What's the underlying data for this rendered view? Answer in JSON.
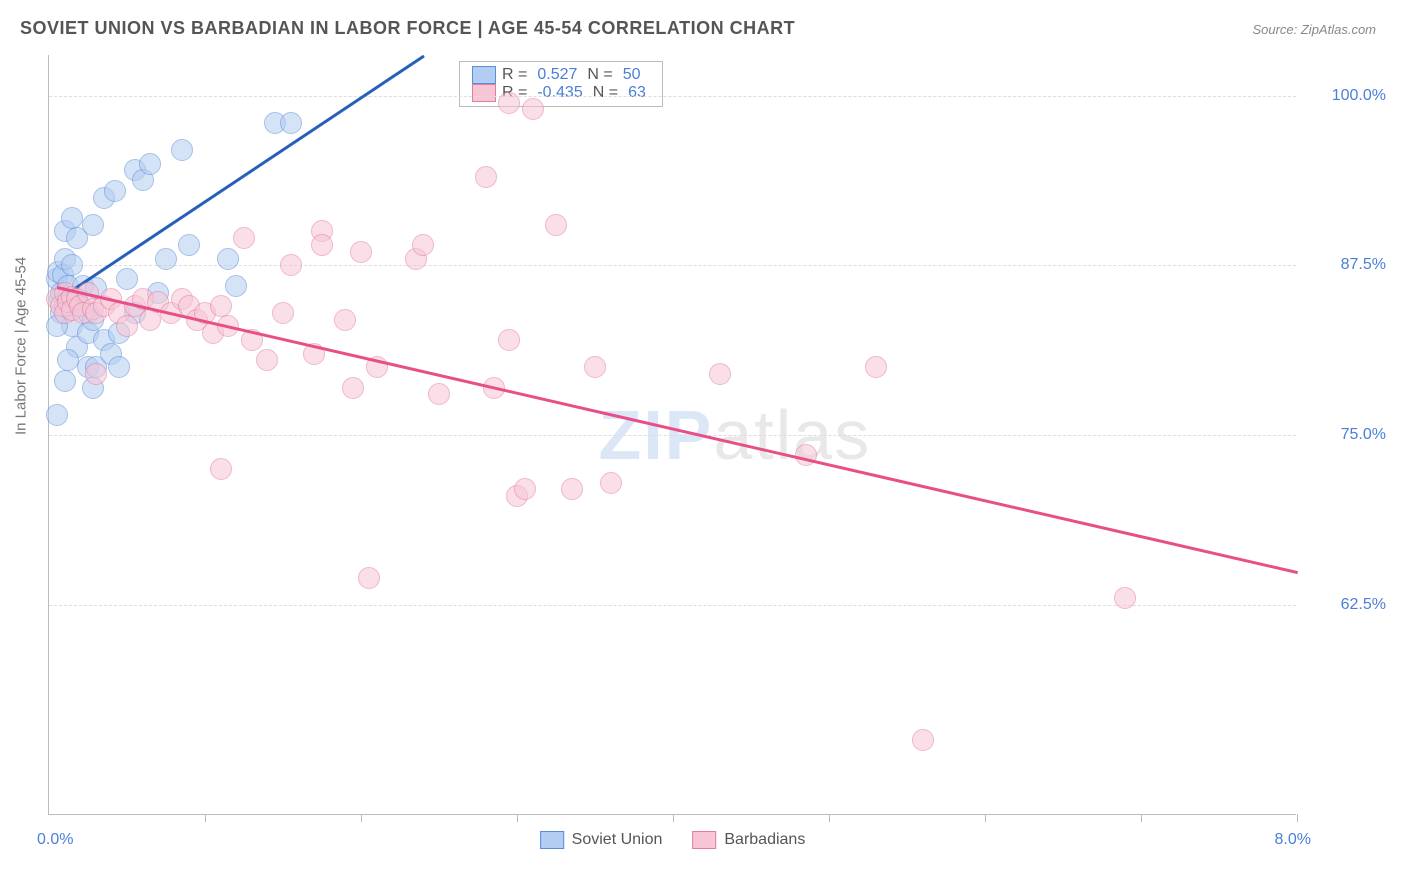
{
  "title": "SOVIET UNION VS BARBADIAN IN LABOR FORCE | AGE 45-54 CORRELATION CHART",
  "source": "Source: ZipAtlas.com",
  "watermark_zip": "ZIP",
  "watermark_atlas": "atlas",
  "chart": {
    "type": "scatter",
    "background_color": "#ffffff",
    "grid_color": "#dddddd",
    "axis_color": "#bbbbbb",
    "tick_label_color": "#4a7fd8",
    "yaxis_label": "In Labor Force | Age 45-54",
    "yaxis_label_fontsize": 15,
    "yaxis_label_color": "#777777",
    "xlim": [
      0.0,
      8.0
    ],
    "ylim": [
      47.0,
      103.0
    ],
    "yticks": [
      62.5,
      75.0,
      87.5,
      100.0
    ],
    "ytick_labels": [
      "62.5%",
      "75.0%",
      "87.5%",
      "100.0%"
    ],
    "xticks": [
      1.0,
      2.0,
      3.0,
      4.0,
      5.0,
      6.0,
      7.0,
      8.0
    ],
    "xaxis_min_label": "0.0%",
    "xaxis_max_label": "8.0%",
    "marker_radius": 10,
    "marker_opacity": 0.55,
    "marker_stroke_width": 1.5,
    "legend_top": {
      "rows": [
        {
          "r_label": "R =",
          "r_value": "0.527",
          "n_label": "N =",
          "n_value": "50"
        },
        {
          "r_label": "R =",
          "r_value": "-0.435",
          "n_label": "N =",
          "n_value": "63"
        }
      ]
    },
    "legend_bottom": [
      {
        "label": "Soviet Union"
      },
      {
        "label": "Barbadians"
      }
    ],
    "series": [
      {
        "name": "Soviet Union",
        "fill_color": "#b3cdf2",
        "stroke_color": "#5a8ed8",
        "trend_color": "#2a5fb8",
        "trend": {
          "x1": 0.05,
          "y1": 85.0,
          "x2": 2.4,
          "y2": 103.0
        },
        "points": [
          [
            0.05,
            86.5
          ],
          [
            0.06,
            87.0
          ],
          [
            0.07,
            85.0
          ],
          [
            0.08,
            84.0
          ],
          [
            0.08,
            85.5
          ],
          [
            0.09,
            86.8
          ],
          [
            0.1,
            88.0
          ],
          [
            0.1,
            84.5
          ],
          [
            0.12,
            85.2
          ],
          [
            0.12,
            86.0
          ],
          [
            0.15,
            87.5
          ],
          [
            0.15,
            83.0
          ],
          [
            0.18,
            85.0
          ],
          [
            0.18,
            81.5
          ],
          [
            0.2,
            84.5
          ],
          [
            0.22,
            86.0
          ],
          [
            0.25,
            84.0
          ],
          [
            0.25,
            82.5
          ],
          [
            0.28,
            83.5
          ],
          [
            0.3,
            85.8
          ],
          [
            0.05,
            76.5
          ],
          [
            0.1,
            79.0
          ],
          [
            0.12,
            80.5
          ],
          [
            0.25,
            80.0
          ],
          [
            0.28,
            78.5
          ],
          [
            0.3,
            80.0
          ],
          [
            0.35,
            82.0
          ],
          [
            0.4,
            81.0
          ],
          [
            0.45,
            82.5
          ],
          [
            0.45,
            80.0
          ],
          [
            0.1,
            90.0
          ],
          [
            0.15,
            91.0
          ],
          [
            0.18,
            89.5
          ],
          [
            0.28,
            90.5
          ],
          [
            0.35,
            92.5
          ],
          [
            0.42,
            93.0
          ],
          [
            0.55,
            94.5
          ],
          [
            0.6,
            93.8
          ],
          [
            0.65,
            95.0
          ],
          [
            0.85,
            96.0
          ],
          [
            0.9,
            89.0
          ],
          [
            1.15,
            88.0
          ],
          [
            1.2,
            86.0
          ],
          [
            1.45,
            98.0
          ],
          [
            1.55,
            98.0
          ],
          [
            0.5,
            86.5
          ],
          [
            0.55,
            84.0
          ],
          [
            0.7,
            85.5
          ],
          [
            0.75,
            88.0
          ],
          [
            0.05,
            83.0
          ]
        ]
      },
      {
        "name": "Barbadians",
        "fill_color": "#f6c6d6",
        "stroke_color": "#e57ba0",
        "trend_color": "#e84f86",
        "trend": {
          "x1": 0.05,
          "y1": 86.0,
          "x2": 8.0,
          "y2": 65.0
        },
        "points": [
          [
            0.05,
            85.0
          ],
          [
            0.08,
            84.5
          ],
          [
            0.1,
            85.5
          ],
          [
            0.1,
            84.0
          ],
          [
            0.12,
            84.8
          ],
          [
            0.15,
            85.2
          ],
          [
            0.15,
            84.2
          ],
          [
            0.18,
            85.0
          ],
          [
            0.2,
            84.5
          ],
          [
            0.22,
            84.0
          ],
          [
            0.25,
            85.5
          ],
          [
            0.28,
            84.3
          ],
          [
            0.3,
            84.0
          ],
          [
            0.35,
            84.5
          ],
          [
            0.4,
            85.0
          ],
          [
            0.45,
            84.0
          ],
          [
            0.5,
            83.0
          ],
          [
            0.55,
            84.5
          ],
          [
            0.6,
            85.0
          ],
          [
            0.65,
            83.5
          ],
          [
            0.7,
            84.8
          ],
          [
            0.78,
            84.0
          ],
          [
            0.85,
            85.0
          ],
          [
            0.9,
            84.5
          ],
          [
            0.3,
            79.5
          ],
          [
            0.95,
            83.5
          ],
          [
            1.0,
            84.0
          ],
          [
            1.05,
            82.5
          ],
          [
            1.1,
            84.5
          ],
          [
            1.15,
            83.0
          ],
          [
            1.25,
            89.5
          ],
          [
            1.3,
            82.0
          ],
          [
            1.4,
            80.5
          ],
          [
            1.5,
            84.0
          ],
          [
            1.55,
            87.5
          ],
          [
            1.7,
            81.0
          ],
          [
            1.75,
            90.0
          ],
          [
            1.75,
            89.0
          ],
          [
            1.9,
            83.5
          ],
          [
            1.95,
            78.5
          ],
          [
            2.0,
            88.5
          ],
          [
            2.1,
            80.0
          ],
          [
            2.35,
            88.0
          ],
          [
            2.4,
            89.0
          ],
          [
            2.5,
            78.0
          ],
          [
            2.05,
            64.5
          ],
          [
            2.8,
            94.0
          ],
          [
            2.85,
            78.5
          ],
          [
            2.95,
            82.0
          ],
          [
            2.95,
            99.5
          ],
          [
            3.0,
            70.5
          ],
          [
            3.05,
            71.0
          ],
          [
            3.1,
            99.0
          ],
          [
            3.25,
            90.5
          ],
          [
            3.35,
            71.0
          ],
          [
            3.5,
            80.0
          ],
          [
            3.6,
            71.5
          ],
          [
            4.3,
            79.5
          ],
          [
            4.85,
            73.5
          ],
          [
            5.3,
            80.0
          ],
          [
            5.6,
            52.5
          ],
          [
            6.9,
            63.0
          ],
          [
            1.1,
            72.5
          ]
        ]
      }
    ]
  }
}
